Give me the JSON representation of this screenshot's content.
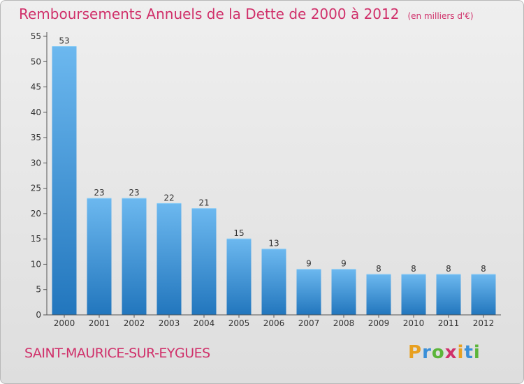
{
  "title": "Remboursements Annuels de la Dette de 2000 à 2012",
  "subtitle": "(en milliers d'€)",
  "commune": "SAINT-MAURICE-SUR-EYGUES",
  "logo": {
    "letters": [
      "P",
      "r",
      "o",
      "x",
      "i",
      "t",
      "i"
    ],
    "colors": [
      "#e8a020",
      "#3a8fd8",
      "#5cb53a",
      "#d0306a",
      "#e8a020",
      "#3a8fd8",
      "#5cb53a"
    ]
  },
  "colors": {
    "title": "#d0306a",
    "bar_light": "#6cb8ef",
    "bar_dark": "#2276bd",
    "axis": "#555555"
  },
  "chart_data": {
    "type": "bar",
    "categories": [
      "2000",
      "2001",
      "2002",
      "2003",
      "2004",
      "2005",
      "2006",
      "2007",
      "2008",
      "2009",
      "2010",
      "2011",
      "2012"
    ],
    "values": [
      53,
      23,
      23,
      22,
      21,
      15,
      13,
      9,
      9,
      8,
      8,
      8,
      8
    ],
    "ylim": [
      0,
      55
    ],
    "yticks": [
      0,
      5,
      10,
      15,
      20,
      25,
      30,
      35,
      40,
      45,
      50,
      55
    ],
    "grid": false,
    "legend": "none"
  }
}
